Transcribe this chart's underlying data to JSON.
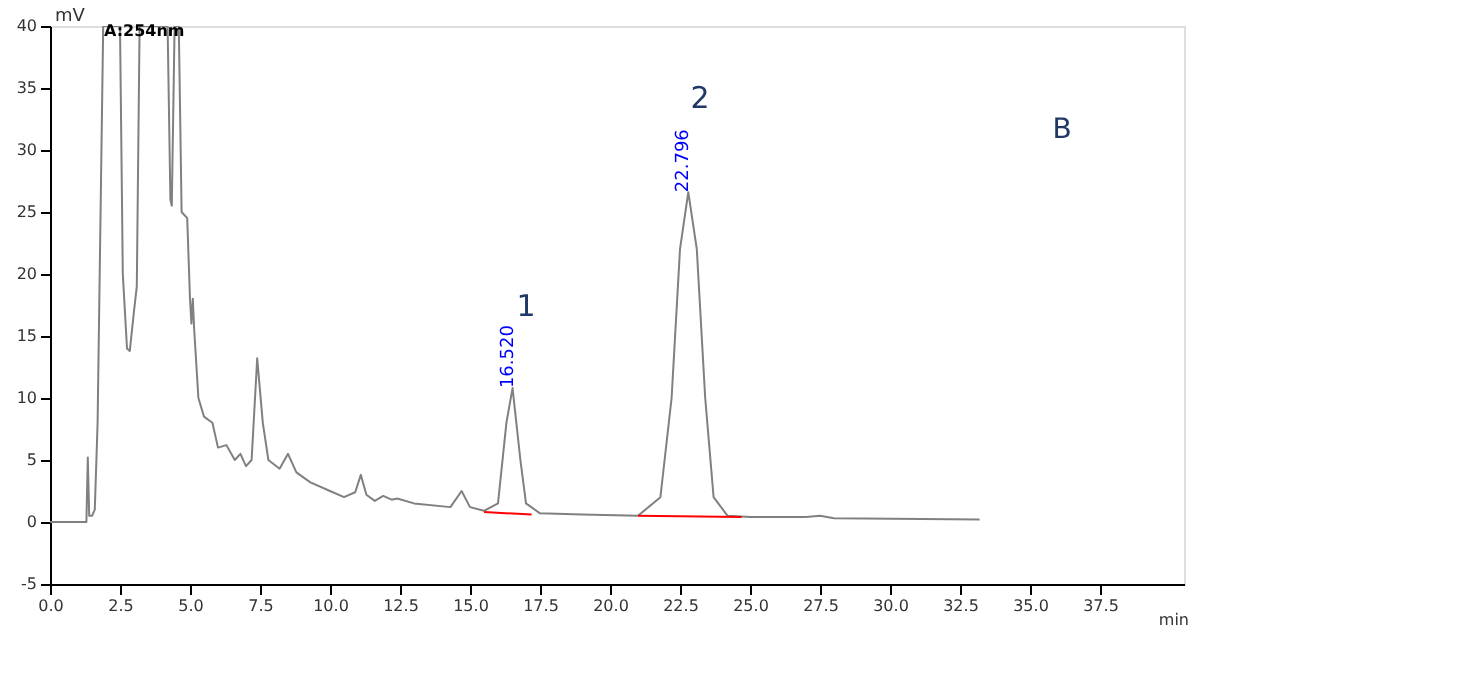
{
  "chart_data": {
    "type": "line",
    "xlabel": "min",
    "ylabel": "mV",
    "xlim": [
      0,
      40.5
    ],
    "ylim": [
      -5,
      40
    ],
    "xticks": [
      {
        "value": 0,
        "label": "0.0"
      },
      {
        "value": 2.5,
        "label": "2.5"
      },
      {
        "value": 5,
        "label": "5.0"
      },
      {
        "value": 7.5,
        "label": "7.5"
      },
      {
        "value": 10,
        "label": "10.0"
      },
      {
        "value": 12.5,
        "label": "12.5"
      },
      {
        "value": 15,
        "label": "15.0"
      },
      {
        "value": 17.5,
        "label": "17.5"
      },
      {
        "value": 20,
        "label": "20.0"
      },
      {
        "value": 22.5,
        "label": "22.5"
      },
      {
        "value": 25,
        "label": "25.0"
      },
      {
        "value": 27.5,
        "label": "27.5"
      },
      {
        "value": 30,
        "label": "30.0"
      },
      {
        "value": 32.5,
        "label": "32.5"
      },
      {
        "value": 35,
        "label": "35.0"
      },
      {
        "value": 37.5,
        "label": "37.5"
      }
    ],
    "yticks": [
      -5,
      0,
      5,
      10,
      15,
      20,
      25,
      30,
      35,
      40
    ],
    "grid": false,
    "line_style": "solid",
    "series": [
      {
        "color": "#808080",
        "x": [
          0,
          1.3,
          1.35,
          1.4,
          1.5,
          1.6,
          1.7,
          1.9,
          2.5,
          2.6,
          2.75,
          2.85,
          3.0,
          3.1,
          3.2,
          4.2,
          4.3,
          4.35,
          4.45,
          4.6,
          4.7,
          4.9,
          5.0,
          5.05,
          5.1,
          5.15,
          5.3,
          5.5,
          5.8,
          6.0,
          6.3,
          6.6,
          6.8,
          7.0,
          7.2,
          7.4,
          7.6,
          7.8,
          8.2,
          8.5,
          8.8,
          9.3,
          10.0,
          10.5,
          10.9,
          11.1,
          11.3,
          11.6,
          11.9,
          12.2,
          12.4,
          13.0,
          14.3,
          14.7,
          15.0,
          15.5,
          16.0,
          16.3,
          16.52,
          16.8,
          17.0,
          17.5,
          19.0,
          21.0,
          21.8,
          22.2,
          22.5,
          22.796,
          23.1,
          23.4,
          23.7,
          24.2,
          25.0,
          27.0,
          27.5,
          28.0,
          33.2
        ],
        "values": [
          0,
          0,
          5.2,
          0.5,
          0.5,
          1,
          8,
          40,
          40,
          20,
          14,
          13.8,
          17,
          19,
          40,
          40,
          26,
          25.5,
          40,
          40,
          25,
          24.5,
          18,
          16,
          18,
          15.5,
          10,
          8.5,
          8,
          6,
          6.2,
          5,
          5.5,
          4.5,
          5,
          13.2,
          8,
          5,
          4.3,
          5.5,
          4,
          3.2,
          2.5,
          2.0,
          2.4,
          3.8,
          2.2,
          1.7,
          2.1,
          1.8,
          1.9,
          1.5,
          1.2,
          2.5,
          1.2,
          0.9,
          1.5,
          8,
          10.8,
          5,
          1.5,
          0.7,
          0.6,
          0.5,
          2,
          10,
          22,
          26.6,
          22,
          10,
          2,
          0.5,
          0.4,
          0.4,
          0.5,
          0.3,
          0.2
        ]
      },
      {
        "color": "#ff0000",
        "x": [
          15.5,
          17.2
        ],
        "values": [
          0.8,
          0.6
        ]
      },
      {
        "color": "#ff0000",
        "x": [
          21.0,
          24.7
        ],
        "values": [
          0.5,
          0.4
        ]
      }
    ],
    "annotations": [
      "A:254nm",
      "1",
      "2",
      "B",
      {
        "text": "16.520",
        "x": 16.52,
        "y": 10.8
      },
      {
        "text": "22.796",
        "x": 22.796,
        "y": 26.6
      }
    ]
  }
}
